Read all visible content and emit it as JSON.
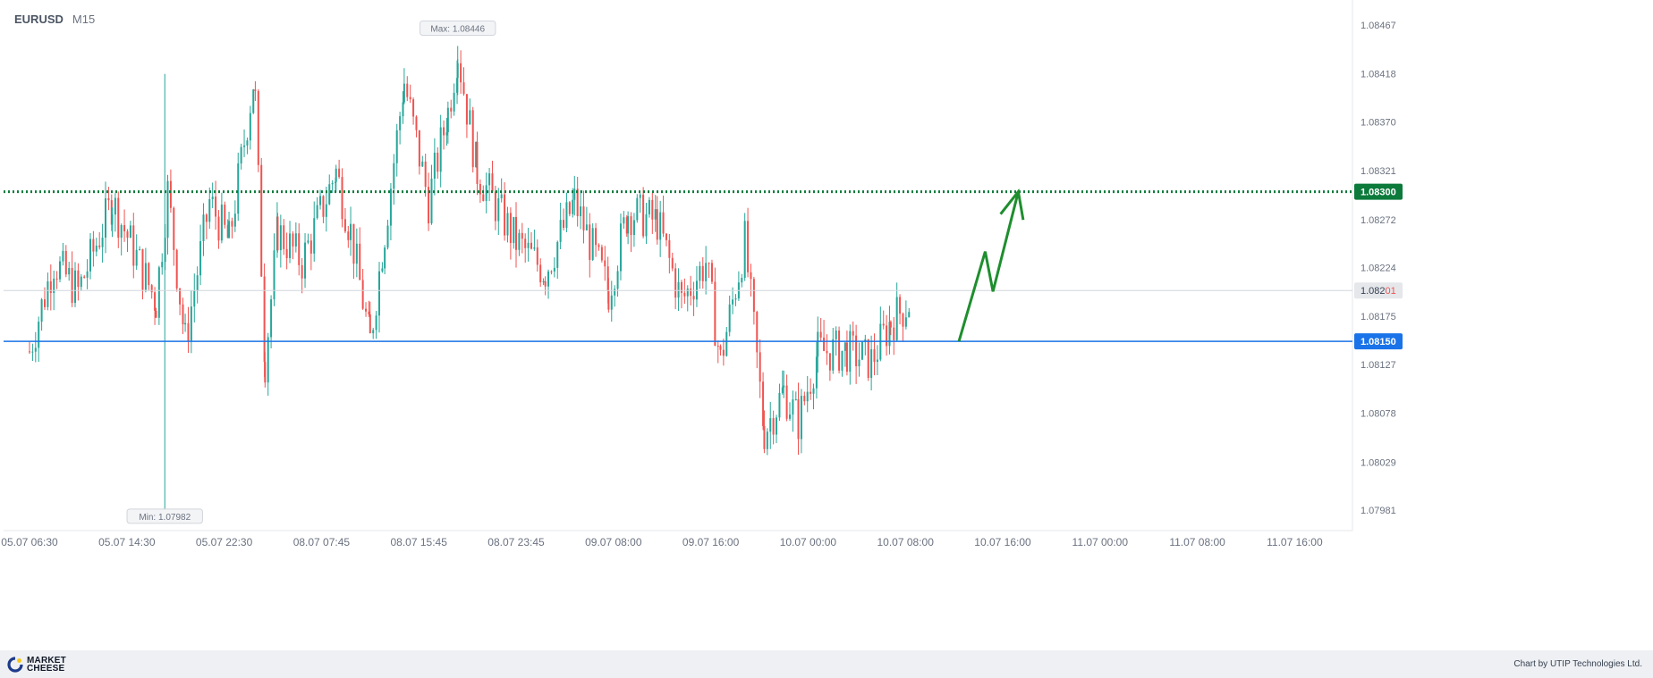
{
  "header": {
    "symbol": "EURUSD",
    "timeframe": "M15"
  },
  "footer": {
    "logo_line1": "MARKET",
    "logo_line2": "CHEESE",
    "credit": "Chart by UTIP Technologies Ltd."
  },
  "colors": {
    "bull": "#26a69a",
    "bear": "#ef5350",
    "resistance": "#0b7a3b",
    "support": "#1a73e8",
    "arrow": "#1e8e2e",
    "grid_text": "#6b7280"
  },
  "chart_data": {
    "type": "candlestick",
    "title": "EURUSD M15",
    "ylim": [
      1.0796,
      1.0849
    ],
    "y_ticks": [
      "1.08467",
      "1.08418",
      "1.08370",
      "1.08321",
      "1.08272",
      "1.08224",
      "1.08175",
      "1.08127",
      "1.08078",
      "1.08029",
      "1.07981"
    ],
    "x_ticks": [
      "05.07 06:30",
      "05.07 14:30",
      "05.07 22:30",
      "08.07 07:45",
      "08.07 15:45",
      "08.07 23:45",
      "09.07 08:00",
      "09.07 16:00",
      "10.07 00:00",
      "10.07 08:00",
      "10.07 16:00",
      "11.07 00:00",
      "11.07 08:00",
      "11.07 16:00"
    ],
    "current_price": {
      "value": 1.08201,
      "label_main": "1.082",
      "label_pips": "01"
    },
    "levels": [
      {
        "name": "resistance",
        "value": 1.083,
        "label": "1.08300",
        "style": "dotted"
      },
      {
        "name": "support",
        "value": 1.0815,
        "label": "1.08150",
        "style": "solid"
      }
    ],
    "annotations": [
      {
        "text": "Max: 1.08446",
        "value": 1.08446,
        "x_tick_offset": 4.4
      },
      {
        "text": "Min: 1.07982",
        "value": 1.07982,
        "x_tick_offset": 1.39
      }
    ],
    "forecast_path": [
      {
        "x": 9.55,
        "y": 1.0815
      },
      {
        "x": 9.82,
        "y": 1.0824
      },
      {
        "x": 9.9,
        "y": 1.082
      },
      {
        "x": 10.16,
        "y": 1.083
      }
    ],
    "candles_ohlc_waypoints": [
      {
        "x": 0.0,
        "y": 1.0814
      },
      {
        "x": 0.25,
        "y": 1.0823
      },
      {
        "x": 0.5,
        "y": 1.082
      },
      {
        "x": 0.85,
        "y": 1.0829
      },
      {
        "x": 1.3,
        "y": 1.0819
      },
      {
        "x": 1.42,
        "y": 1.083
      },
      {
        "x": 1.6,
        "y": 1.0815
      },
      {
        "x": 1.85,
        "y": 1.0829
      },
      {
        "x": 2.05,
        "y": 1.0825
      },
      {
        "x": 2.3,
        "y": 1.0841
      },
      {
        "x": 2.32,
        "y": 1.0839
      },
      {
        "x": 2.42,
        "y": 1.0813
      },
      {
        "x": 2.55,
        "y": 1.0826
      },
      {
        "x": 2.8,
        "y": 1.0823
      },
      {
        "x": 3.15,
        "y": 1.0832
      },
      {
        "x": 3.3,
        "y": 1.0826
      },
      {
        "x": 3.5,
        "y": 1.0815
      },
      {
        "x": 3.65,
        "y": 1.0826
      },
      {
        "x": 3.85,
        "y": 1.0841
      },
      {
        "x": 4.1,
        "y": 1.0829
      },
      {
        "x": 4.3,
        "y": 1.0838
      },
      {
        "x": 4.4,
        "y": 1.0844
      },
      {
        "x": 4.6,
        "y": 1.0832
      },
      {
        "x": 5.0,
        "y": 1.0825
      },
      {
        "x": 5.3,
        "y": 1.0822
      },
      {
        "x": 5.6,
        "y": 1.0829
      },
      {
        "x": 5.95,
        "y": 1.082
      },
      {
        "x": 6.15,
        "y": 1.0828
      },
      {
        "x": 6.45,
        "y": 1.0827
      },
      {
        "x": 6.7,
        "y": 1.0819
      },
      {
        "x": 6.95,
        "y": 1.0823
      },
      {
        "x": 7.1,
        "y": 1.0813
      },
      {
        "x": 7.35,
        "y": 1.0825
      },
      {
        "x": 7.55,
        "y": 1.0806
      },
      {
        "x": 7.75,
        "y": 1.081
      },
      {
        "x": 7.9,
        "y": 1.0807
      },
      {
        "x": 8.1,
        "y": 1.0814
      },
      {
        "x": 8.4,
        "y": 1.0814
      },
      {
        "x": 8.65,
        "y": 1.0813
      },
      {
        "x": 8.85,
        "y": 1.0817
      },
      {
        "x": 9.05,
        "y": 1.0819
      }
    ]
  }
}
